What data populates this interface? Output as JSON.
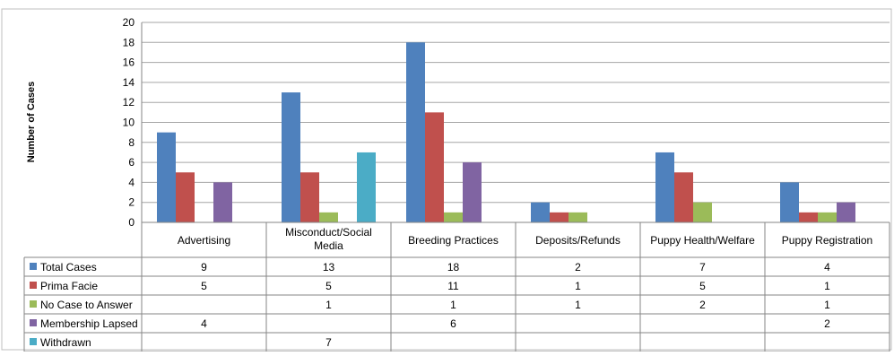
{
  "chart_data": {
    "type": "bar",
    "ylabel": "Number of Cases",
    "ylim": [
      0,
      20
    ],
    "yticks": [
      0,
      2,
      4,
      6,
      8,
      10,
      12,
      14,
      16,
      18,
      20
    ],
    "categories": [
      "Advertising",
      "Misconduct/Social Media",
      "Breeding Practices",
      "Deposits/Refunds",
      "Puppy Health/Welfare",
      "Puppy Registration"
    ],
    "category_label_lines": [
      [
        "Advertising"
      ],
      [
        "Misconduct/Social",
        "Media"
      ],
      [
        "Breeding Practices"
      ],
      [
        "Deposits/Refunds"
      ],
      [
        "Puppy Health/Welfare"
      ],
      [
        "Puppy Registration"
      ]
    ],
    "series": [
      {
        "name": "Total Cases",
        "color": "#4f81bd",
        "values": [
          9,
          13,
          18,
          2,
          7,
          4
        ]
      },
      {
        "name": "Prima Facie",
        "color": "#c0504d",
        "values": [
          5,
          5,
          11,
          1,
          5,
          1
        ]
      },
      {
        "name": "No Case to Answer",
        "color": "#9bbb59",
        "values": [
          null,
          1,
          1,
          1,
          2,
          1
        ]
      },
      {
        "name": "Membership Lapsed",
        "color": "#8064a2",
        "values": [
          4,
          null,
          6,
          null,
          null,
          2
        ]
      },
      {
        "name": "Withdrawn",
        "color": "#4bacc6",
        "values": [
          null,
          7,
          null,
          null,
          null,
          null
        ]
      }
    ],
    "grid": true,
    "legend": "data-table"
  }
}
